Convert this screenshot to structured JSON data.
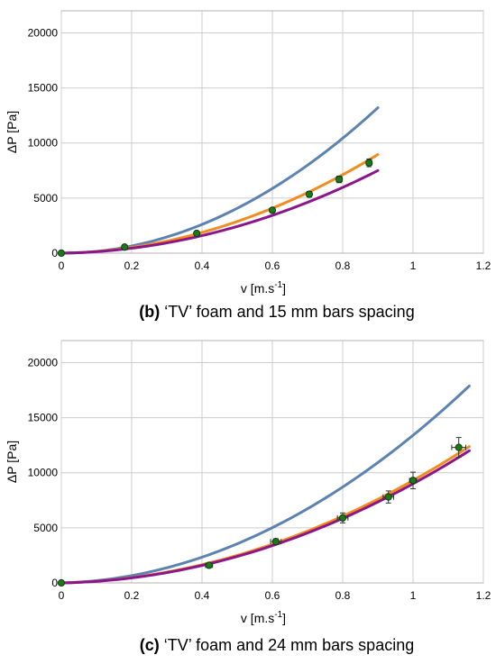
{
  "chart_data": [
    {
      "type": "line",
      "caption_label": "(b)",
      "caption_text": " ‘TV’ foam and 15 mm bars spacing",
      "xlabel_main": "v [m.s",
      "xlabel_sup": "-1",
      "xlabel_end": "]",
      "ylabel": "ΔP [Pa]",
      "xlim": [
        0,
        1.2
      ],
      "ylim": [
        0,
        22000
      ],
      "xticks": [
        0,
        0.2,
        0.4,
        0.6,
        0.8,
        1,
        1.2
      ],
      "xtick_labels": [
        "0",
        "0.2",
        "0.4",
        "0.6",
        "0.8",
        "1",
        "1.2"
      ],
      "yticks": [
        0,
        5000,
        10000,
        15000,
        20000
      ],
      "ytick_labels": [
        "0",
        "5000",
        "10000",
        "15000",
        "20000"
      ],
      "grid": true,
      "series": [
        {
          "kind": "curve",
          "color": "#5b82b0",
          "a": 16300,
          "b": 0,
          "xmax": 0.9
        },
        {
          "kind": "curve",
          "color": "#f28c1e",
          "a": 10500,
          "b": 500,
          "xmax": 0.9
        },
        {
          "kind": "curve",
          "color": "#8b168b",
          "a": 8700,
          "b": 500,
          "xmax": 0.9
        },
        {
          "kind": "points",
          "color": "#1a7a1a",
          "x": [
            0,
            0.18,
            0.385,
            0.6,
            0.705,
            0.79,
            0.875
          ],
          "y": [
            0,
            550,
            1800,
            3900,
            5350,
            6700,
            8200
          ],
          "yerr": [
            0,
            100,
            150,
            200,
            250,
            300,
            350
          ],
          "xerr": [
            0,
            0,
            0,
            0,
            0,
            0.008,
            0.008
          ]
        }
      ]
    },
    {
      "type": "line",
      "caption_label": "(c)",
      "caption_text": " ‘TV’ foam and 24 mm bars spacing",
      "xlabel_main": "v [m.s",
      "xlabel_sup": "-1",
      "xlabel_end": "]",
      "ylabel": "ΔP [Pa]",
      "xlim": [
        0,
        1.2
      ],
      "ylim": [
        0,
        22000
      ],
      "xticks": [
        0,
        0.2,
        0.4,
        0.6,
        0.8,
        1,
        1.2
      ],
      "xtick_labels": [
        "0",
        "0.2",
        "0.4",
        "0.6",
        "0.8",
        "1",
        "1.2"
      ],
      "yticks": [
        0,
        5000,
        10000,
        15000,
        20000
      ],
      "ytick_labels": [
        "0",
        "5000",
        "10000",
        "15000",
        "20000"
      ],
      "grid": true,
      "series": [
        {
          "kind": "curve",
          "color": "#5b82b0",
          "a": 12600,
          "b": 800,
          "xmax": 1.16
        },
        {
          "kind": "curve",
          "color": "#f28c1e",
          "a": 8600,
          "b": 700,
          "xmax": 1.16
        },
        {
          "kind": "curve",
          "color": "#8b168b",
          "a": 8400,
          "b": 600,
          "xmax": 1.16
        },
        {
          "kind": "points",
          "color": "#1a7a1a",
          "x": [
            0,
            0.42,
            0.61,
            0.8,
            0.93,
            1.0,
            1.13
          ],
          "y": [
            0,
            1600,
            3750,
            5900,
            7800,
            9300,
            12300
          ],
          "yerr": [
            0,
            150,
            250,
            450,
            550,
            750,
            900
          ],
          "xerr": [
            0,
            0.01,
            0.015,
            0.015,
            0.015,
            0.01,
            0.02
          ]
        }
      ]
    }
  ]
}
